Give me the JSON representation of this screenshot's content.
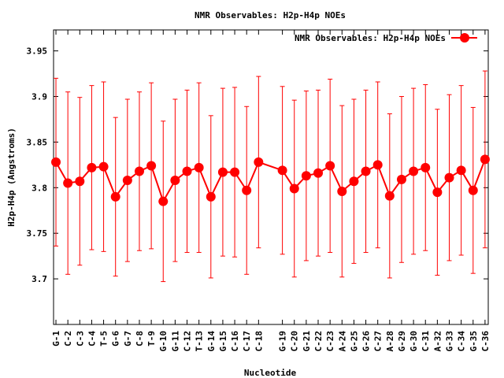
{
  "chart_data": {
    "type": "line",
    "title": "NMR Observables: H2p-H4p NOEs",
    "xlabel": "Nucleotide",
    "ylabel": "H2p-H4p (Angstroms)",
    "ylim": [
      3.65,
      3.973
    ],
    "yticks": [
      3.7,
      3.75,
      3.8,
      3.85,
      3.9,
      3.95
    ],
    "ytick_labels": [
      "3.7",
      "3.75",
      "3.8",
      "3.85",
      "3.9",
      "3.95"
    ],
    "grid": false,
    "legend": {
      "position": "top-right",
      "label": "NMR Observables: H2p-H4p NOEs"
    },
    "color": "#ff0000",
    "categories": [
      "G-1",
      "C-2",
      "C-3",
      "C-4",
      "T-5",
      "G-6",
      "G-7",
      "C-8",
      "T-9",
      "G-10",
      "G-11",
      "C-12",
      "T-13",
      "G-14",
      "G-15",
      "C-16",
      "C-17",
      "C-18",
      "G-19",
      "C-20",
      "G-21",
      "C-22",
      "C-23",
      "A-24",
      "G-25",
      "G-26",
      "C-27",
      "A-28",
      "G-29",
      "G-30",
      "C-31",
      "A-32",
      "G-33",
      "C-34",
      "G-35",
      "C-36"
    ],
    "x": [
      1,
      2,
      3,
      4,
      5,
      6,
      7,
      8,
      9,
      10,
      11,
      12,
      13,
      14,
      15,
      16,
      17,
      18,
      20,
      21,
      22,
      23,
      24,
      25,
      26,
      27,
      28,
      29,
      30,
      31,
      32,
      33,
      34,
      35,
      36,
      37
    ],
    "xlim": [
      0.8,
      37.27
    ],
    "values": [
      3.828,
      3.805,
      3.807,
      3.822,
      3.823,
      3.79,
      3.808,
      3.818,
      3.824,
      3.785,
      3.808,
      3.818,
      3.822,
      3.79,
      3.817,
      3.817,
      3.797,
      3.828,
      3.819,
      3.799,
      3.813,
      3.816,
      3.824,
      3.796,
      3.807,
      3.818,
      3.825,
      3.791,
      3.809,
      3.818,
      3.822,
      3.795,
      3.811,
      3.819,
      3.797,
      3.831
    ],
    "errors": [
      0.092,
      0.1,
      0.092,
      0.09,
      0.093,
      0.087,
      0.089,
      0.087,
      0.091,
      0.088,
      0.089,
      0.089,
      0.093,
      0.089,
      0.092,
      0.093,
      0.092,
      0.094,
      0.092,
      0.097,
      0.093,
      0.091,
      0.095,
      0.094,
      0.09,
      0.089,
      0.091,
      0.09,
      0.091,
      0.091,
      0.091,
      0.091,
      0.091,
      0.093,
      0.091,
      0.097
    ]
  }
}
